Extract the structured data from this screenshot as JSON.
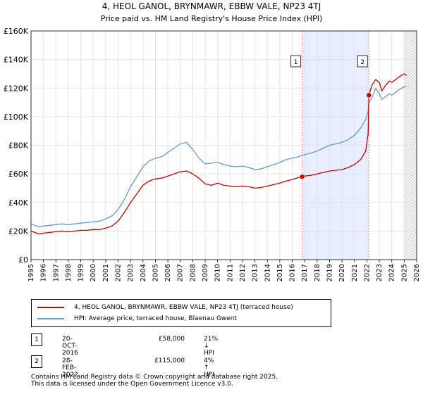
{
  "chart_data": {
    "type": "line",
    "title": "4, HEOL GANOL, BRYNMAWR, EBBW VALE, NP23 4TJ",
    "subtitle": "Price paid vs. HM Land Registry's House Price Index (HPI)",
    "xlabel": "",
    "ylabel": "",
    "xlim": [
      1995,
      2026
    ],
    "ylim": [
      0,
      160000
    ],
    "y_ticks": [
      {
        "value": 0,
        "label": "£0"
      },
      {
        "value": 20000,
        "label": "£20K"
      },
      {
        "value": 40000,
        "label": "£40K"
      },
      {
        "value": 60000,
        "label": "£60K"
      },
      {
        "value": 80000,
        "label": "£80K"
      },
      {
        "value": 100000,
        "label": "£100K"
      },
      {
        "value": 120000,
        "label": "£120K"
      },
      {
        "value": 140000,
        "label": "£140K"
      },
      {
        "value": 160000,
        "label": "£160K"
      }
    ],
    "x_ticks": [
      "1995",
      "1996",
      "1997",
      "1998",
      "1999",
      "2000",
      "2001",
      "2002",
      "2003",
      "2004",
      "2005",
      "2006",
      "2007",
      "2008",
      "2009",
      "2010",
      "2011",
      "2012",
      "2013",
      "2014",
      "2015",
      "2016",
      "2017",
      "2018",
      "2019",
      "2020",
      "2021",
      "2022",
      "2023",
      "2024",
      "2025",
      "2026"
    ],
    "grid": true,
    "shaded_region": {
      "from": 2016.8,
      "to": 2022.16
    },
    "hatched_from": 2025.0,
    "series": [
      {
        "name": "4, HEOL GANOL, BRYNMAWR, EBBW VALE, NP23 4TJ (terraced house)",
        "color": "#cc0000",
        "x": [
          1995.0,
          1995.3,
          1995.6,
          1996.0,
          1996.5,
          1997.0,
          1997.5,
          1998.0,
          1998.5,
          1999.0,
          1999.5,
          2000.0,
          2000.5,
          2001.0,
          2001.5,
          2002.0,
          2002.5,
          2003.0,
          2003.5,
          2004.0,
          2004.5,
          2005.0,
          2005.5,
          2006.0,
          2006.5,
          2007.0,
          2007.5,
          2008.0,
          2008.5,
          2009.0,
          2009.5,
          2010.0,
          2010.5,
          2011.0,
          2011.5,
          2012.0,
          2012.5,
          2013.0,
          2013.5,
          2014.0,
          2014.5,
          2015.0,
          2015.5,
          2016.0,
          2016.5,
          2016.8,
          2017.0,
          2017.5,
          2018.0,
          2018.5,
          2019.0,
          2019.5,
          2020.0,
          2020.5,
          2021.0,
          2021.5,
          2021.9,
          2022.1,
          2022.16,
          2022.4,
          2022.7,
          2023.0,
          2023.2,
          2023.5,
          2023.8,
          2024.0,
          2024.3,
          2024.6,
          2025.0,
          2025.2
        ],
        "y": [
          20000,
          19000,
          18000,
          18500,
          19000,
          19500,
          20000,
          19500,
          20000,
          20500,
          20500,
          21000,
          21000,
          22000,
          23500,
          27000,
          33000,
          40000,
          46000,
          52000,
          55000,
          56500,
          57000,
          58500,
          60000,
          61500,
          62000,
          60000,
          57000,
          53000,
          52000,
          53500,
          52000,
          51500,
          51000,
          51500,
          51000,
          50000,
          50500,
          51500,
          52500,
          53500,
          55000,
          56000,
          57500,
          58000,
          58500,
          59000,
          60000,
          61000,
          62000,
          62500,
          63000,
          64500,
          66500,
          70000,
          76000,
          88000,
          115000,
          122000,
          126000,
          124000,
          118000,
          122000,
          125000,
          124000,
          126000,
          128000,
          130000,
          129000
        ]
      },
      {
        "name": "HPI: Average price, terraced house, Blaenau Gwent",
        "color": "#6699cc",
        "x": [
          1995.0,
          1995.3,
          1995.6,
          1996.0,
          1996.5,
          1997.0,
          1997.5,
          1998.0,
          1998.5,
          1999.0,
          1999.5,
          2000.0,
          2000.5,
          2001.0,
          2001.5,
          2002.0,
          2002.5,
          2003.0,
          2003.5,
          2004.0,
          2004.5,
          2005.0,
          2005.5,
          2006.0,
          2006.5,
          2007.0,
          2007.5,
          2008.0,
          2008.5,
          2009.0,
          2009.5,
          2010.0,
          2010.5,
          2011.0,
          2011.5,
          2012.0,
          2012.5,
          2013.0,
          2013.5,
          2014.0,
          2014.5,
          2015.0,
          2015.5,
          2016.0,
          2016.5,
          2016.8,
          2017.0,
          2017.5,
          2018.0,
          2018.5,
          2019.0,
          2019.5,
          2020.0,
          2020.5,
          2021.0,
          2021.5,
          2021.9,
          2022.1,
          2022.16,
          2022.4,
          2022.7,
          2023.0,
          2023.2,
          2023.5,
          2023.8,
          2024.0,
          2024.3,
          2024.6,
          2025.0,
          2025.2
        ],
        "y": [
          25000,
          24000,
          23000,
          23500,
          24000,
          24500,
          25000,
          24500,
          25000,
          25500,
          26000,
          26500,
          27000,
          28500,
          30500,
          35000,
          42000,
          51000,
          58000,
          65000,
          69000,
          71000,
          72000,
          75000,
          78000,
          81000,
          82000,
          77000,
          71000,
          67000,
          67500,
          68000,
          66500,
          65500,
          65000,
          65500,
          64500,
          63000,
          63500,
          65000,
          66500,
          68000,
          70000,
          71000,
          72000,
          73000,
          73500,
          74500,
          76000,
          78000,
          80000,
          81000,
          82000,
          84000,
          87000,
          92000,
          98000,
          104000,
          110000,
          113000,
          120000,
          116000,
          112000,
          114000,
          116000,
          115000,
          117000,
          119000,
          121000,
          121000
        ]
      }
    ],
    "annotations": [
      {
        "label": "1",
        "x": 2016.8,
        "y": 58000
      },
      {
        "label": "2",
        "x": 2022.16,
        "y": 115000
      }
    ]
  },
  "legend": {
    "series1": "4, HEOL GANOL, BRYNMAWR, EBBW VALE, NP23 4TJ (terraced house)",
    "series2": "HPI: Average price, terraced house, Blaenau Gwent"
  },
  "transactions": [
    {
      "marker": "1",
      "date": "20-OCT-2016",
      "price": "£58,000",
      "hpi": "21% ↓ HPI"
    },
    {
      "marker": "2",
      "date": "28-FEB-2022",
      "price": "£115,000",
      "hpi": "4% ↑ HPI"
    }
  ],
  "footer": {
    "line1": "Contains HM Land Registry data © Crown copyright and database right 2025.",
    "line2": "This data is licensed under the Open Government Licence v3.0."
  },
  "colors": {
    "price_line": "#cc0000",
    "hpi_line": "#6699cc",
    "shade": "#e8eeff",
    "grid": "#dddddd"
  }
}
